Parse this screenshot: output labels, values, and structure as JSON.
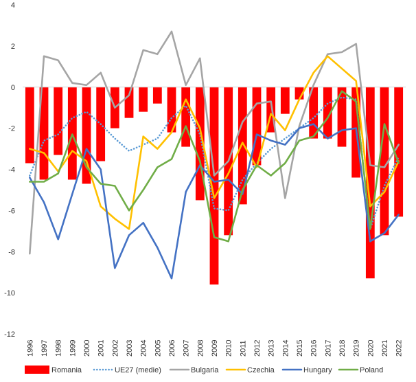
{
  "chart_data": {
    "type": "bar",
    "title": "",
    "xlabel": "",
    "ylabel": "",
    "ylim": [
      -12,
      4
    ],
    "yticks": [
      4,
      2,
      0,
      -2,
      -4,
      -6,
      -8,
      -10,
      -12
    ],
    "grid": false,
    "legend_position": "bottom",
    "categories": [
      "1996",
      "1997",
      "1998",
      "1999",
      "2000",
      "2001",
      "2002",
      "2003",
      "2004",
      "2005",
      "2006",
      "2007",
      "2008",
      "2009",
      "2010",
      "2011",
      "2012",
      "2013",
      "2014",
      "2015",
      "2016",
      "2017",
      "2018",
      "2019",
      "2020",
      "2021",
      "2022"
    ],
    "series": [
      {
        "name": "Romania",
        "kind": "bar",
        "color": "#ff0000",
        "values": [
          -3.7,
          -4.5,
          -3.3,
          -4.5,
          -4.7,
          -3.6,
          -2.0,
          -1.5,
          -1.2,
          -0.8,
          -2.2,
          -2.9,
          -5.5,
          -9.6,
          -7.2,
          -5.7,
          -3.8,
          -2.2,
          -1.3,
          -0.6,
          -2.5,
          -2.5,
          -2.9,
          -4.4,
          -9.3,
          -7.2,
          -6.3
        ]
      },
      {
        "name": "UE27 (medie)",
        "kind": "line",
        "style": "dotted",
        "color": "#5b9bd5",
        "values": [
          -4.3,
          -2.6,
          -2.3,
          -1.5,
          -1.2,
          -1.8,
          -2.5,
          -3.1,
          -2.8,
          -2.5,
          -1.5,
          -0.9,
          -2.3,
          -5.9,
          -6.0,
          -4.5,
          -3.7,
          -3.0,
          -2.5,
          -2.0,
          -1.5,
          -0.8,
          -0.5,
          -0.6,
          -6.9,
          -4.8,
          -3.4
        ]
      },
      {
        "name": "Bulgaria",
        "kind": "line",
        "color": "#a5a5a5",
        "values": [
          -8.1,
          1.5,
          1.3,
          0.2,
          0.1,
          0.7,
          -1.0,
          -0.4,
          1.8,
          1.6,
          2.7,
          0.1,
          1.4,
          -4.3,
          -3.6,
          -1.7,
          -0.8,
          -0.7,
          -5.4,
          -1.9,
          0.1,
          1.6,
          1.7,
          2.1,
          -3.8,
          -3.9,
          -2.8
        ]
      },
      {
        "name": "Czechia",
        "kind": "line",
        "color": "#ffc000",
        "values": [
          -3.0,
          -3.2,
          -4.1,
          -3.1,
          -3.6,
          -5.8,
          -6.4,
          -6.9,
          -2.4,
          -3.0,
          -2.2,
          -0.6,
          -2.0,
          -5.4,
          -4.2,
          -2.7,
          -3.9,
          -1.3,
          -2.1,
          -0.6,
          0.7,
          1.5,
          0.9,
          0.3,
          -5.8,
          -5.1,
          -3.6
        ]
      },
      {
        "name": "Hungary",
        "kind": "line",
        "color": "#4472c4",
        "values": [
          -4.4,
          -5.6,
          -7.4,
          -5.2,
          -3.0,
          -4.0,
          -8.8,
          -7.2,
          -6.6,
          -7.8,
          -9.3,
          -5.1,
          -3.8,
          -4.6,
          -4.5,
          -5.2,
          -2.3,
          -2.6,
          -2.8,
          -2.0,
          -1.8,
          -2.5,
          -2.1,
          -2.0,
          -7.5,
          -7.1,
          -6.2
        ]
      },
      {
        "name": "Poland",
        "kind": "line",
        "color": "#70ad47",
        "values": [
          -4.6,
          -4.6,
          -4.2,
          -2.3,
          -3.9,
          -4.7,
          -4.8,
          -6.0,
          -5.0,
          -3.9,
          -3.5,
          -1.9,
          -3.6,
          -7.3,
          -7.5,
          -5.0,
          -3.8,
          -4.3,
          -3.7,
          -2.6,
          -2.4,
          -1.5,
          -0.2,
          -0.7,
          -6.9,
          -1.8,
          -3.7
        ]
      }
    ]
  }
}
